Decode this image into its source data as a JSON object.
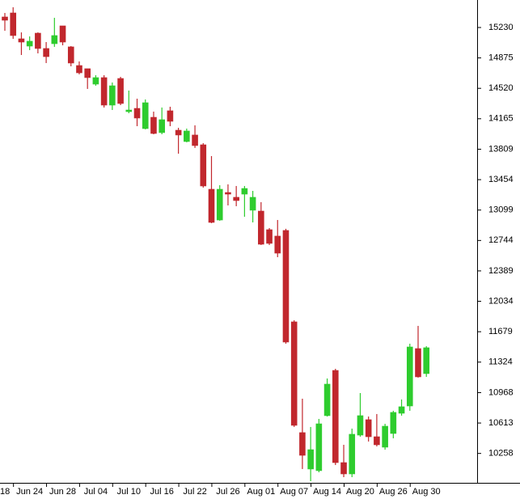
{
  "chart_data": {
    "type": "candlestick",
    "categories": [
      "18",
      null,
      null,
      "Jun 24",
      null,
      null,
      null,
      "Jun 28",
      null,
      null,
      null,
      "Jul 04",
      null,
      null,
      null,
      "Jul 10",
      null,
      null,
      null,
      "Jul 16",
      null,
      null,
      null,
      "Jul 22",
      null,
      null,
      null,
      "Jul 26",
      null,
      null,
      null,
      "Aug 01",
      null,
      null,
      null,
      "Aug 07",
      null,
      null,
      null,
      "Aug 14",
      null,
      null,
      null,
      "Aug 20",
      null,
      null,
      null,
      "Aug 26",
      null,
      null,
      null,
      "Aug 30"
    ],
    "open": [
      15353,
      15400,
      15098,
      15013,
      15164,
      14985,
      15041,
      15249,
      15004,
      14786,
      14749,
      14569,
      14645,
      14324,
      14635,
      14248,
      14286,
      14050,
      14182,
      14003,
      14258,
      14031,
      13899,
      13975,
      13861,
      13342,
      12983,
      13304,
      13248,
      13285,
      13097,
      13087,
      12870,
      12795,
      12861,
      11794,
      10501,
      10076,
      10057,
      10699,
      11227,
      10151,
      10019,
      10472,
      10652,
      10453,
      10331,
      10491,
      10727,
      10812,
      11482,
      11190
    ],
    "high": [
      15400,
      15466,
      15173,
      15126,
      15173,
      15060,
      15343,
      15249,
      15013,
      14834,
      14749,
      14673,
      14673,
      14588,
      14654,
      14494,
      14399,
      14390,
      14248,
      14296,
      14305,
      14059,
      14050,
      14088,
      13880,
      13729,
      13389,
      13399,
      13380,
      13380,
      13323,
      13191,
      12889,
      12983,
      12880,
      11813,
      10897,
      10567,
      10661,
      11133,
      11246,
      10359,
      10548,
      10963,
      10689,
      10718,
      10604,
      10756,
      10888,
      11539,
      11747,
      11510
    ],
    "low": [
      15192,
      15098,
      14909,
      14966,
      14928,
      14815,
      15004,
      15022,
      14777,
      14683,
      14513,
      14550,
      14296,
      14267,
      14324,
      14229,
      14078,
      14041,
      13984,
      13984,
      14078,
      13757,
      13890,
      13824,
      13361,
      12946,
      12974,
      13153,
      13144,
      13021,
      12955,
      12691,
      12691,
      12549,
      11539,
      10567,
      10076,
      9934,
      10038,
      10689,
      10123,
      9981,
      9981,
      10453,
      10397,
      10340,
      10302,
      10435,
      10699,
      10756,
      11143,
      11152
    ],
    "close": [
      15315,
      15136,
      15060,
      15070,
      14985,
      14890,
      15136,
      15060,
      14815,
      14701,
      14645,
      14645,
      14324,
      14550,
      14343,
      14267,
      14173,
      14352,
      13993,
      14154,
      14135,
      13975,
      14022,
      13852,
      13380,
      12955,
      13342,
      13285,
      13210,
      13351,
      13248,
      12700,
      12710,
      12596,
      11558,
      10586,
      10236,
      10302,
      10604,
      11067,
      10151,
      10019,
      10482,
      10699,
      10453,
      10359,
      10576,
      10737,
      10803,
      11501,
      11152,
      11492
    ],
    "up_color": "#2ecc2e",
    "down_color": "#c1272d",
    "ylim": [
      9915,
      15551
    ],
    "yticks": [
      10258,
      10613,
      10968,
      11324,
      11679,
      12034,
      12389,
      12744,
      13099,
      13454,
      13809,
      14165,
      14520,
      14875,
      15230
    ]
  }
}
